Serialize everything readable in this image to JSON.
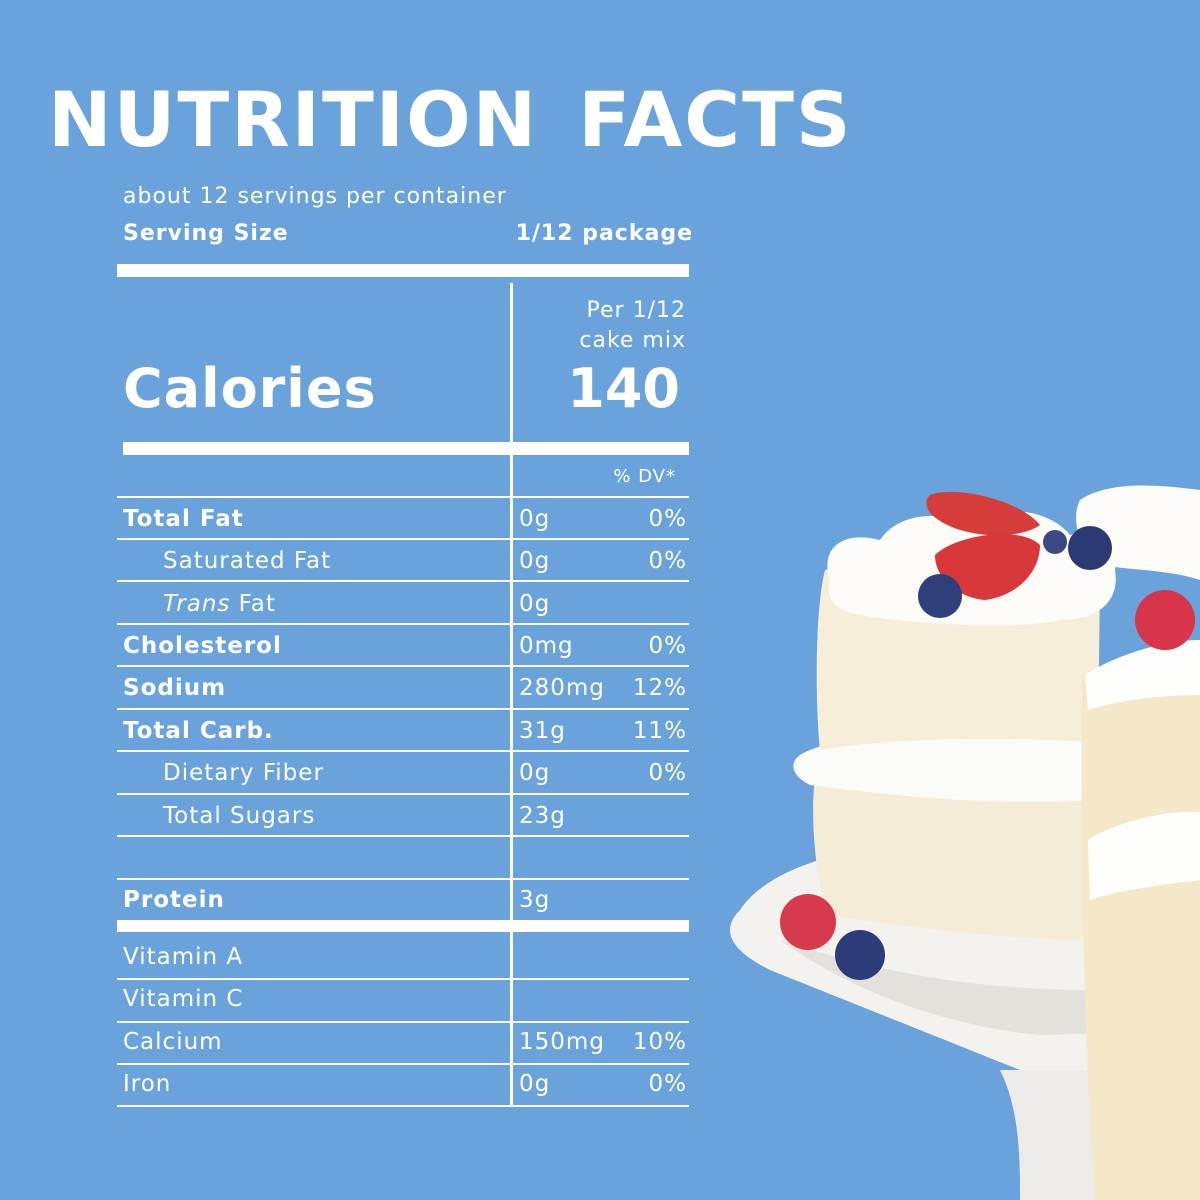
{
  "title": {
    "word1": "NUTRITION",
    "word2": "FACTS"
  },
  "servings_per_container": "about 12 servings per container",
  "serving_size": {
    "label": "Serving Size",
    "value": "1/12 package"
  },
  "per_header": {
    "line1": "Per 1/12",
    "line2": "cake mix"
  },
  "calories": {
    "label": "Calories",
    "value": "140"
  },
  "dv_header": "% DV*",
  "nutrients": [
    {
      "name": "Total Fat",
      "amount": "0g",
      "dv": "0%"
    },
    {
      "name": "Saturated Fat",
      "amount": "0g",
      "dv": "0%"
    },
    {
      "name_italic": "Trans",
      "name_rest": " Fat",
      "amount": "0g",
      "dv": ""
    },
    {
      "name": "Cholesterol",
      "amount": "0mg",
      "dv": "0%"
    },
    {
      "name": "Sodium",
      "amount": "280mg",
      "dv": "12%"
    },
    {
      "name": "Total Carb.",
      "amount": "31g",
      "dv": "11%"
    },
    {
      "name": "Dietary Fiber",
      "amount": "0g",
      "dv": "0%"
    },
    {
      "name": "Total Sugars",
      "amount": "23g",
      "dv": ""
    },
    {
      "name": "Protein",
      "amount": "3g",
      "dv": ""
    }
  ],
  "micronutrients": [
    {
      "name": "Vitamin A",
      "amount": "",
      "dv": ""
    },
    {
      "name": "Vitamin C",
      "amount": "",
      "dv": ""
    },
    {
      "name": "Calcium",
      "amount": "150mg",
      "dv": "10%"
    },
    {
      "name": "Iron",
      "amount": "0g",
      "dv": "0%"
    }
  ],
  "colors": {
    "background": "#6aa3db",
    "text": "#ffffff"
  }
}
